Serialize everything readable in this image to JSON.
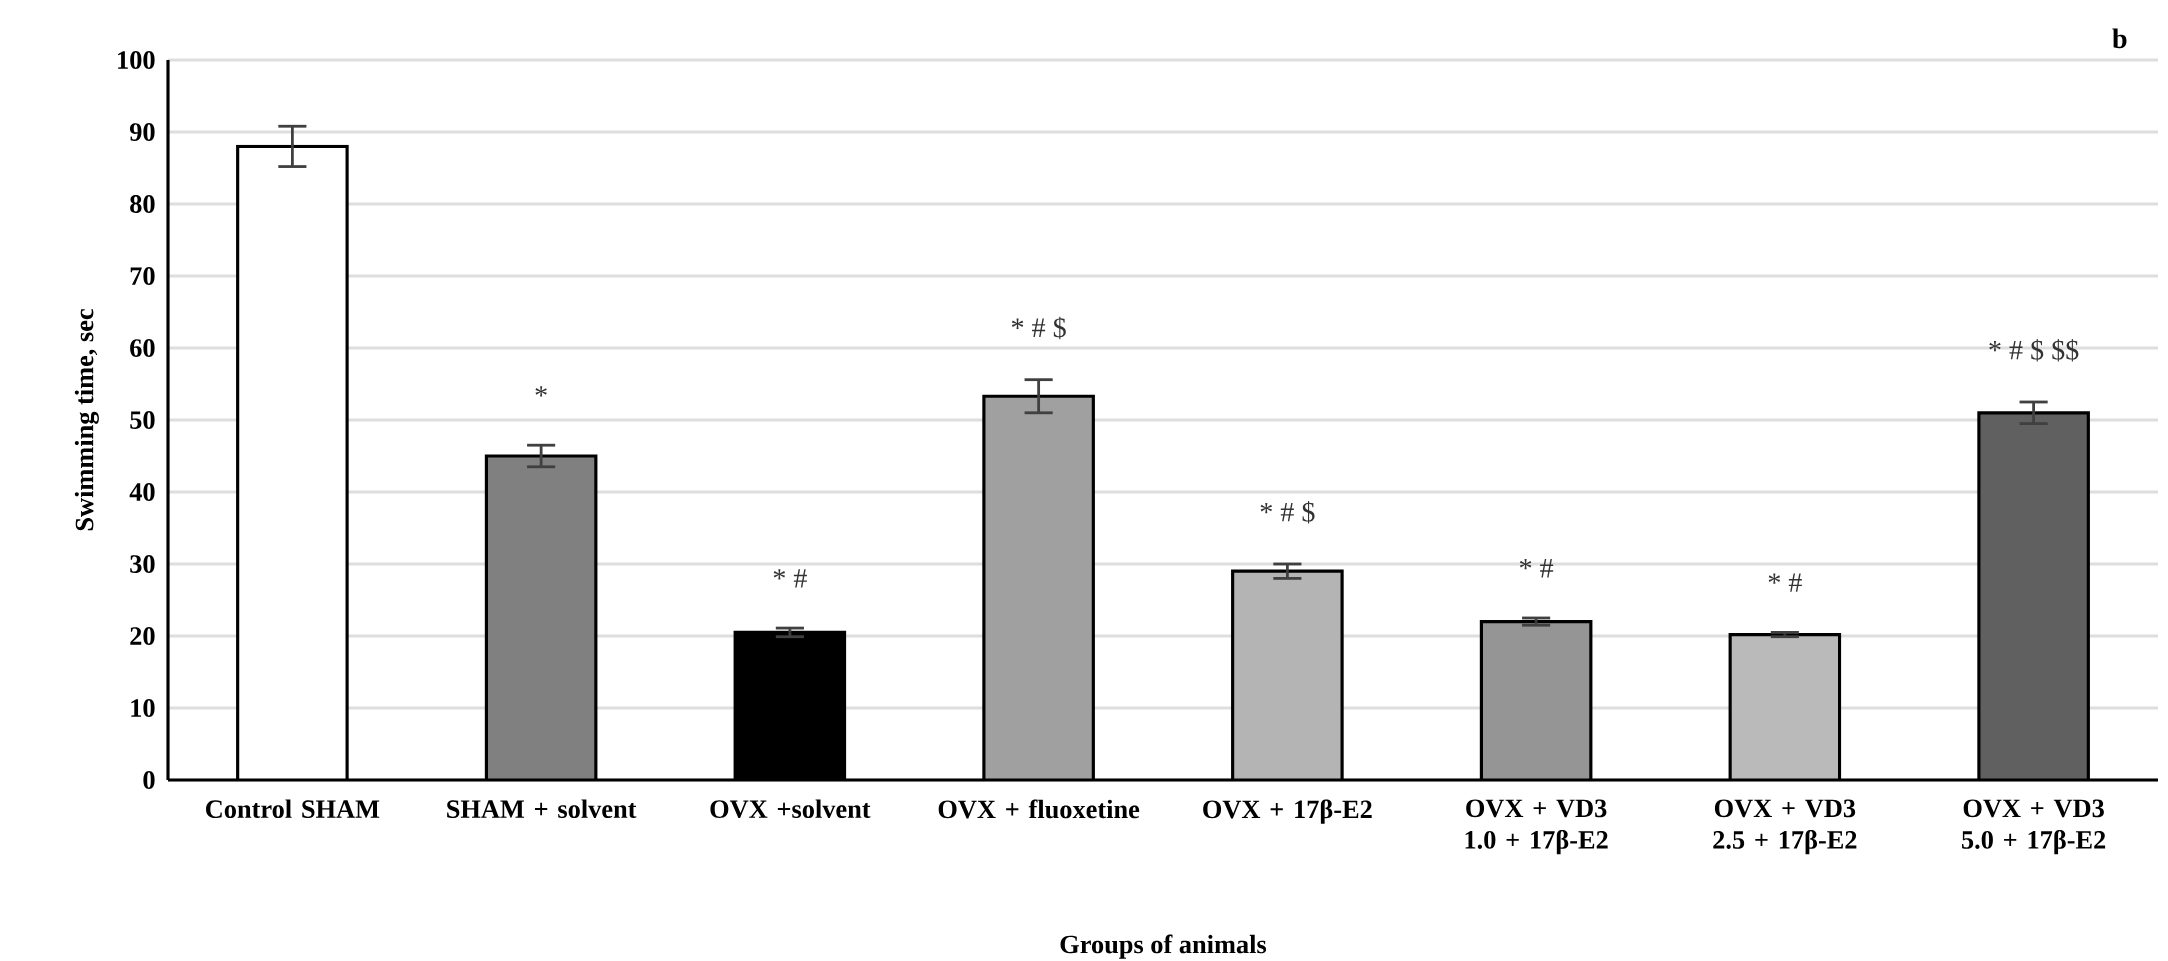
{
  "chart_data": {
    "type": "bar",
    "xlabel": "Groups of animals",
    "ylabel": "Swimming time, sec",
    "categories": [
      "Control SHAM",
      "SHAM + solvent",
      "OVX +solvent",
      "OVX + fluoxetine",
      "OVX + 17β-E2",
      "OVX + VD3 1.0 + 17β-E2",
      "OVX + VD3 2.5 + 17β-E2",
      "OVX + VD3 5.0 + 17β-E2"
    ],
    "values": [
      88,
      45,
      20.5,
      53.3,
      29,
      22,
      20.2,
      51
    ],
    "errors": [
      2.8,
      1.5,
      0.6,
      2.3,
      1,
      0.5,
      0.3,
      1.5
    ],
    "colors": [
      "#ffffff",
      "#808080",
      "#000000",
      "#a0a0a0",
      "#b4b4b4",
      "#959595",
      "#bababa",
      "#606060"
    ],
    "ylim": [
      0,
      100
    ],
    "yticks": [
      0,
      10,
      20,
      30,
      40,
      50,
      60,
      70,
      80,
      90,
      100
    ],
    "grid": "y",
    "annotations": [
      "b",
      "*",
      "* #",
      "* # $",
      "* # $",
      "* #",
      "* #",
      "* # $ $$"
    ]
  }
}
